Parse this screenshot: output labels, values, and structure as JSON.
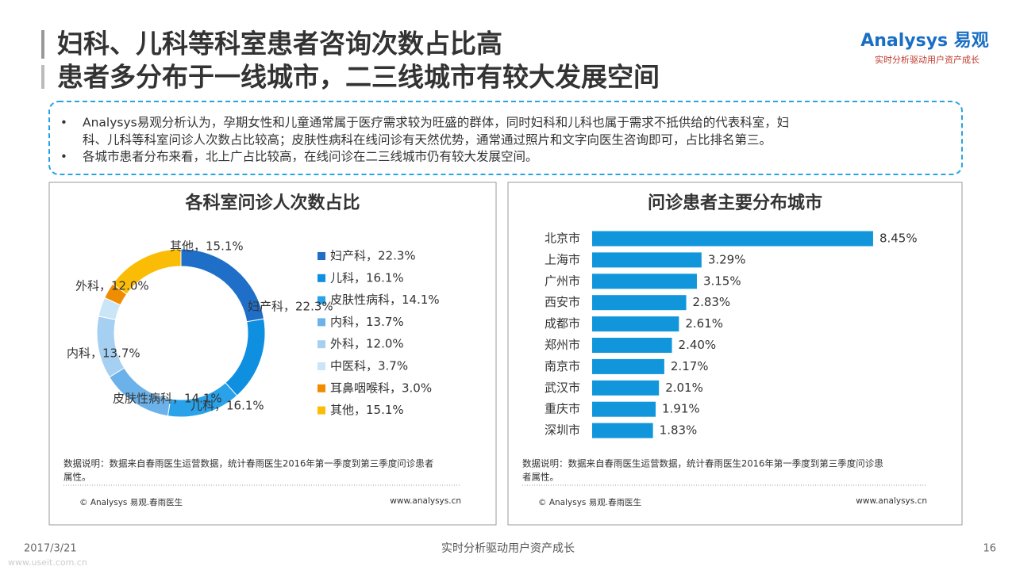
{
  "header": {
    "title_lines": [
      "妇科、儿科等科室患者咨询次数占比高",
      "患者多分布于一线城市，二三线城市有较大发展空间"
    ],
    "logo": "Analysys 易观",
    "tagline": "实时分析驱动用户资产成长"
  },
  "bullets": [
    "Analysys易观分析认为，孕期女性和儿童通常属于医疗需求较为旺盛的群体，同时妇科和儿科也属于需求不抵供给的代表科室，妇",
    "科、儿科等科室问诊人次数占比较高；皮肤性病科在线问诊有天然优势，通常通过照片和文字向医生咨询即可，占比排名第三。",
    "各城市患者分布来看，北上广占比较高，在线问诊在二三线城市仍有较大发展空间。"
  ],
  "chart_data": [
    {
      "type": "donut",
      "title": "各科室问诊人次数占比",
      "categories": [
        "妇产科，22.3%",
        "儿科，16.1%",
        "皮肤性病科，14.1%",
        "内科，13.7%",
        "外科，12.0%",
        "中医科，3.7%",
        "耳鼻咽喉科，3.0%",
        "其他，15.1%"
      ],
      "values": [
        22.3,
        16.1,
        14.1,
        13.7,
        12.0,
        3.7,
        3.0,
        15.1
      ],
      "colors": [
        "#1f6fc8",
        "#0e8fe0",
        "#2aa2ea",
        "#6cb2ea",
        "#a6d0f2",
        "#cbe5f8",
        "#f08c00",
        "#fbbc05"
      ],
      "data_note_lines": [
        "数据说明：数据来自春雨医生运营数据，统计春雨医生2016年第一季度到第三季度问诊患者",
        "属性。"
      ],
      "source": "© Analysys 易观.春雨医生",
      "website": "www.analysys.cn"
    },
    {
      "type": "hbar",
      "title": "问诊患者主要分布城市",
      "categories": [
        "北京市",
        "上海市",
        "广州市",
        "西安市",
        "成都市",
        "郑州市",
        "南京市",
        "武汉市",
        "重庆市",
        "深圳市"
      ],
      "values": [
        8.45,
        3.29,
        3.15,
        2.83,
        2.61,
        2.4,
        2.17,
        2.01,
        1.91,
        1.83
      ],
      "value_labels": [
        "8.45%",
        "3.29%",
        "3.15%",
        "2.83%",
        "2.61%",
        "2.40%",
        "2.17%",
        "2.01%",
        "1.91%",
        "1.83%"
      ],
      "color": "#1296db",
      "xlim": [
        0,
        9
      ],
      "data_note_lines": [
        "数据说明：数据来自春雨医生运营数据，统计春雨医生2016年第一季度到第三季度问诊患",
        "者属性。"
      ],
      "source": "© Analysys 易观.春雨医生",
      "website": "www.analysys.cn"
    }
  ],
  "footer": {
    "date": "2017/3/21",
    "slogan": "实时分析驱动用户资产成长",
    "page": "16",
    "watermark": "www.useit.com.cn"
  }
}
